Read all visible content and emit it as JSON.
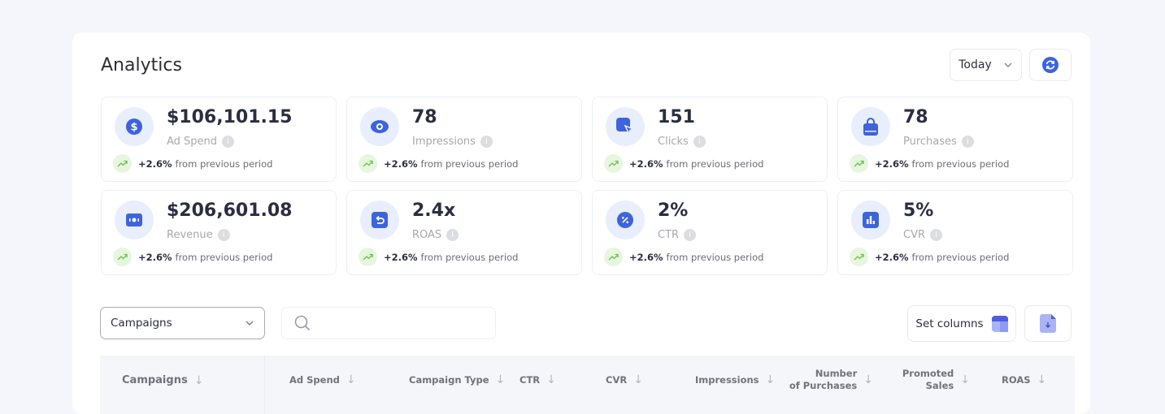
{
  "header": {
    "title": "Analytics",
    "date_range": "Today"
  },
  "accent": "#3d63dd",
  "metrics": [
    {
      "value": "$106,101.15",
      "label": "Ad Spend",
      "icon": "dollar-icon",
      "change": "+2.6%",
      "change_text": "from previous period"
    },
    {
      "value": "78",
      "label": "Impressions",
      "icon": "eye-icon",
      "change": "+2.6%",
      "change_text": "from previous period"
    },
    {
      "value": "151",
      "label": "Clicks",
      "icon": "cursor-click-icon",
      "change": "+2.6%",
      "change_text": "from previous period"
    },
    {
      "value": "78",
      "label": "Purchases",
      "icon": "shopping-bag-icon",
      "change": "+2.6%",
      "change_text": "from previous period"
    },
    {
      "value": "$206,601.08",
      "label": "Revenue",
      "icon": "cash-icon",
      "change": "+2.6%",
      "change_text": "from previous period"
    },
    {
      "value": "2.4x",
      "label": "ROAS",
      "icon": "return-icon",
      "change": "+2.6%",
      "change_text": "from previous period"
    },
    {
      "value": "2%",
      "label": "CTR",
      "icon": "percent-icon",
      "change": "+2.6%",
      "change_text": "from previous period"
    },
    {
      "value": "5%",
      "label": "CVR",
      "icon": "bar-chart-icon",
      "change": "+2.6%",
      "change_text": "from previous period"
    }
  ],
  "toolbar": {
    "view_select": "Campaigns",
    "search_placeholder": "",
    "set_columns": "Set columns"
  },
  "table": {
    "columns": [
      "Campaigns",
      "Ad Spend",
      "Campaign Type",
      "CTR",
      "CVR",
      "Impressions",
      "Number\nof Purchases",
      "Promoted\nSales",
      "ROAS"
    ]
  }
}
